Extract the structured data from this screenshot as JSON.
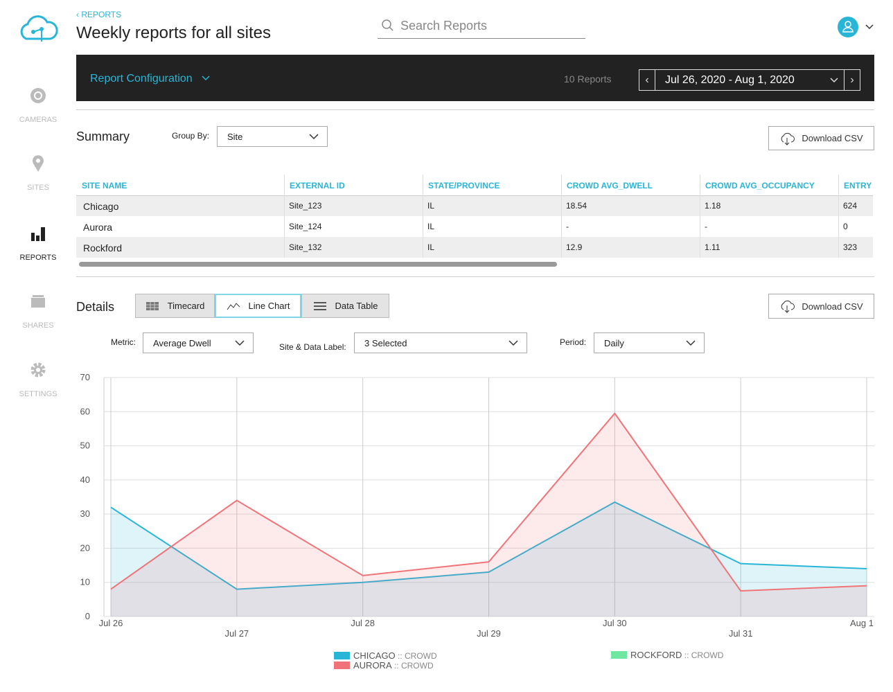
{
  "sidebar": {
    "items": [
      "CAMERAS",
      "SITES",
      "REPORTS",
      "SHARES",
      "SETTINGS"
    ]
  },
  "header": {
    "back": "REPORTS",
    "title": "Weekly reports for all sites",
    "search_placeholder": "Search Reports"
  },
  "toolbar": {
    "config": "Report Configuration",
    "count": "10 Reports",
    "date_range": "Jul 26, 2020 - Aug 1, 2020"
  },
  "summary": {
    "title": "Summary",
    "group_by_label": "Group By:",
    "group_by": "Site",
    "download": "Download CSV"
  },
  "table": {
    "columns": [
      "SITE NAME",
      "EXTERNAL ID",
      "STATE/PROVINCE",
      "CROWD AVG_DWELL",
      "CROWD AVG_OCCUPANCY",
      "ENTRY"
    ],
    "rows": [
      [
        "Chicago",
        "Site_123",
        "IL",
        18.54,
        1.18,
        624
      ],
      [
        "Aurora",
        "Site_124",
        "IL",
        "-",
        "-",
        0
      ],
      [
        "Rockford",
        "Site_132",
        "IL",
        12.9,
        1.11,
        323
      ]
    ]
  },
  "details": {
    "title": "Details",
    "tabs": [
      "Timecard",
      "Line Chart",
      "Data Table"
    ],
    "download": "Download CSV",
    "metric_label": "Metric:",
    "metric": "Average Dwell",
    "site_label": "Site & Data Label:",
    "site": "3 Selected",
    "period_label": "Period:",
    "period": "Daily"
  },
  "chart_data": {
    "type": "line",
    "categories": [
      "Jul 26",
      "Jul 27",
      "Jul 28",
      "Jul 29",
      "Jul 30",
      "Jul 31",
      "Aug 1"
    ],
    "ylim": [
      0,
      70
    ],
    "yticks": [
      0,
      10,
      20,
      30,
      40,
      50,
      60,
      70
    ],
    "grid": true,
    "series": [
      {
        "name": "CHICAGO",
        "tag": ":: CROWD",
        "color": "#29b6d6",
        "values": [
          32,
          8,
          10,
          13,
          33.5,
          15.5,
          14
        ]
      },
      {
        "name": "AURORA",
        "tag": ":: CROWD",
        "color": "#f07377",
        "values": [
          8,
          34,
          12,
          16,
          59.5,
          7.5,
          9
        ]
      },
      {
        "name": "ROCKFORD",
        "tag": ":: CROWD",
        "color": "#6ee8a0",
        "values": [
          null,
          null,
          null,
          null,
          null,
          null,
          null
        ]
      }
    ]
  }
}
